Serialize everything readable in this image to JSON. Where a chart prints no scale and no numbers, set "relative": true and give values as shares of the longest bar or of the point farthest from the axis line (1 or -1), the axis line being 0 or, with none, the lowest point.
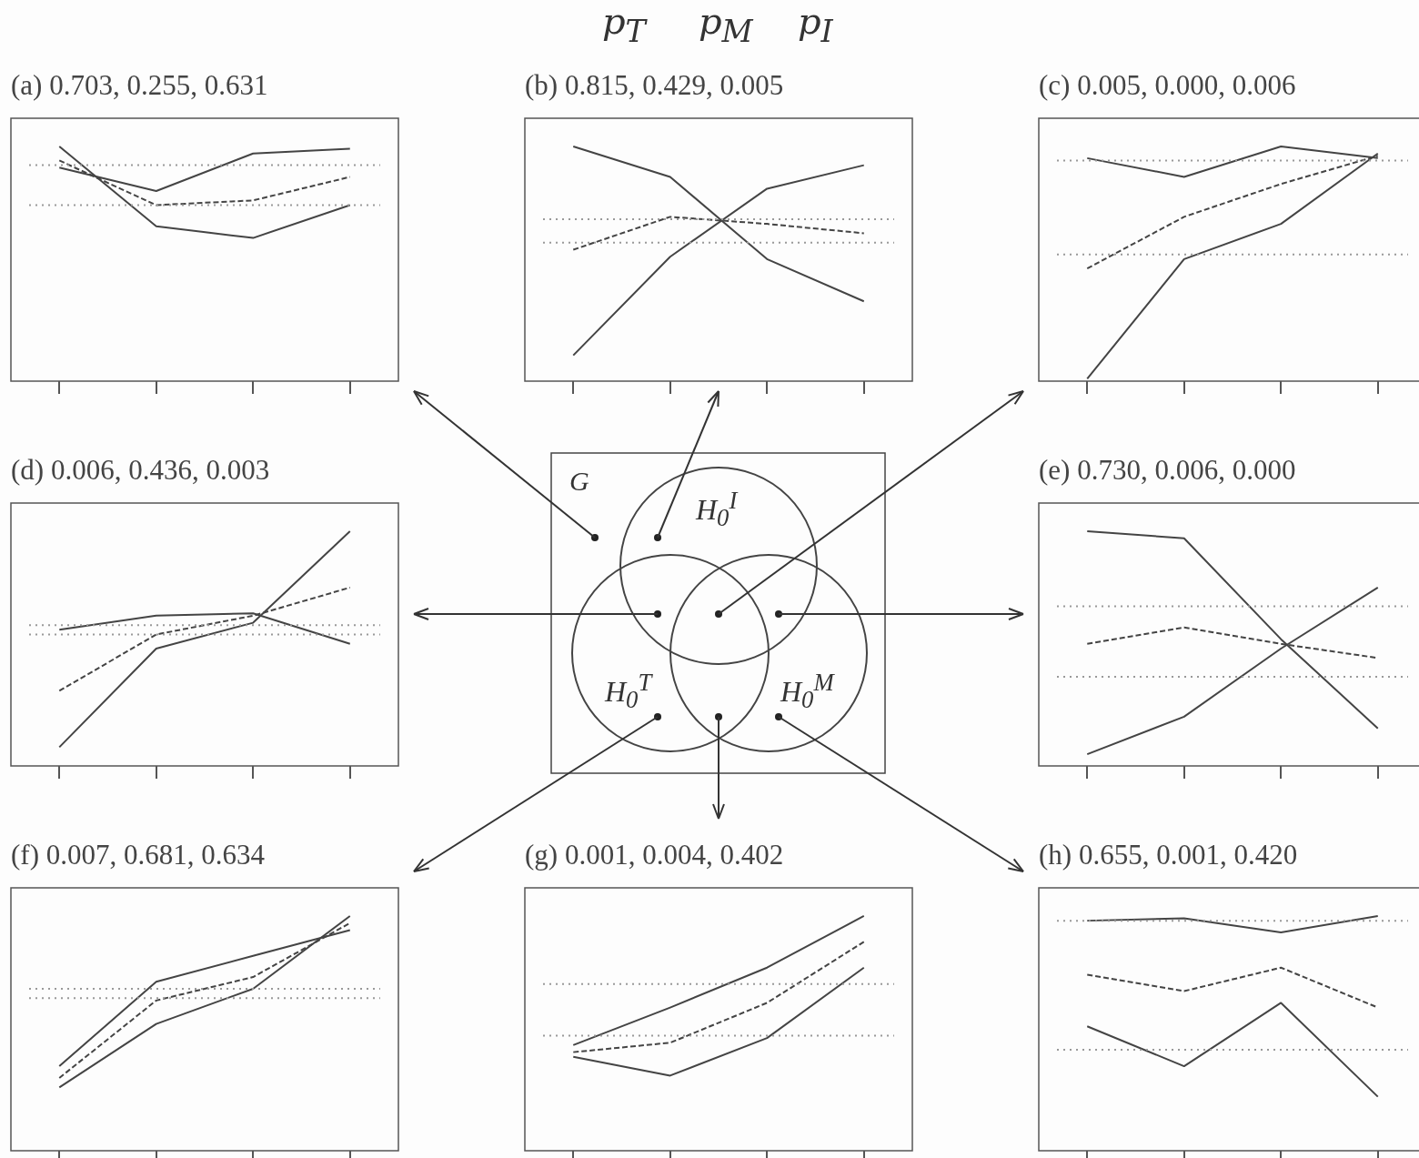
{
  "chart_data": [
    {
      "type": "line",
      "title": "(a) 0.703, 0.255, 0.631",
      "relative": true,
      "marker": "none",
      "categories": [
        null,
        null,
        null,
        null
      ],
      "series": [
        {
          "color": "#444444",
          "values": [
            1,
            0.66,
            0.61,
            0.75
          ]
        },
        {
          "color": "#444444",
          "values": [
            0.91,
            0.81,
            0.97,
            0.99
          ]
        },
        {
          "color": "#444444",
          "line_style": "dashed",
          "values": [
            0.94,
            0.75,
            0.77,
            0.87
          ]
        }
      ],
      "ref_lines": [
        {
          "axis": "y",
          "value": 0.92,
          "color": "#999999",
          "line_style": "dotted"
        },
        {
          "axis": "y",
          "value": 0.75,
          "color": "#999999",
          "line_style": "dotted"
        }
      ]
    },
    {
      "type": "line",
      "title": "(b) 0.815, 0.429, 0.005",
      "relative": true,
      "marker": "none",
      "categories": [
        null,
        null,
        null,
        null
      ],
      "series": [
        {
          "color": "#444444",
          "values": [
            1,
            0.87,
            0.52,
            0.34
          ]
        },
        {
          "color": "#444444",
          "values": [
            0.11,
            0.53,
            0.82,
            0.92
          ]
        },
        {
          "color": "#444444",
          "line_style": "dashed",
          "values": [
            0.56,
            0.7,
            0.67,
            0.63
          ]
        }
      ],
      "ref_lines": [
        {
          "axis": "y",
          "value": 0.69,
          "color": "#999999",
          "line_style": "dotted"
        },
        {
          "axis": "y",
          "value": 0.59,
          "color": "#999999",
          "line_style": "dotted"
        }
      ]
    },
    {
      "type": "line",
      "title": "(c) 0.005, 0.000, 0.006",
      "relative": true,
      "marker": "none",
      "categories": [
        null,
        null,
        null,
        null
      ],
      "series": [
        {
          "color": "#444444",
          "values": [
            0.95,
            0.87,
            1,
            0.95
          ]
        },
        {
          "color": "#444444",
          "values": [
            0.01,
            0.52,
            0.67,
            0.97
          ]
        },
        {
          "color": "#444444",
          "line_style": "dashed",
          "values": [
            0.48,
            0.7,
            0.84,
            0.96
          ]
        }
      ],
      "ref_lines": [
        {
          "axis": "y",
          "value": 0.94,
          "color": "#999999",
          "line_style": "dotted"
        },
        {
          "axis": "y",
          "value": 0.54,
          "color": "#999999",
          "line_style": "dotted"
        }
      ]
    },
    {
      "type": "line",
      "title": "(d) 0.006, 0.436, 0.003",
      "relative": true,
      "marker": "none",
      "categories": [
        null,
        null,
        null,
        null
      ],
      "series": [
        {
          "color": "#444444",
          "values": [
            0.58,
            0.64,
            0.65,
            0.52
          ]
        },
        {
          "color": "#444444",
          "values": [
            0.08,
            0.5,
            0.61,
            1
          ]
        },
        {
          "color": "#444444",
          "line_style": "dashed",
          "values": [
            0.32,
            0.56,
            0.64,
            0.76
          ]
        }
      ],
      "ref_lines": [
        {
          "axis": "y",
          "value": 0.6,
          "color": "#999999",
          "line_style": "dotted"
        },
        {
          "axis": "y",
          "value": 0.56,
          "color": "#999999",
          "line_style": "dotted"
        }
      ]
    },
    {
      "type": "other",
      "annotations": [
        "p$_{T}$",
        "p$_{M}$",
        "p$_{I}$",
        "G",
        "H$_{0}$$^{I}$",
        "H$_{0}$$^{T}$",
        "H$_{0}$$^{M}$"
      ]
    },
    {
      "type": "line",
      "title": "(e) 0.730, 0.006, 0.000",
      "relative": true,
      "marker": "none",
      "categories": [
        null,
        null,
        null,
        null
      ],
      "series": [
        {
          "color": "#444444",
          "values": [
            1,
            0.97,
            0.54,
            0.16
          ]
        },
        {
          "color": "#444444",
          "values": [
            0.05,
            0.21,
            0.5,
            0.76
          ]
        },
        {
          "color": "#444444",
          "line_style": "dashed",
          "values": [
            0.52,
            0.59,
            0.52,
            0.46
          ]
        }
      ],
      "ref_lines": [
        {
          "axis": "y",
          "value": 0.68,
          "color": "#999999",
          "line_style": "dotted"
        },
        {
          "axis": "y",
          "value": 0.38,
          "color": "#999999",
          "line_style": "dotted"
        }
      ]
    },
    {
      "type": "line",
      "title": "(f) 0.007, 0.681, 0.634",
      "relative": true,
      "marker": "none",
      "categories": [
        null,
        null,
        null,
        null
      ],
      "series": [
        {
          "color": "#444444",
          "values": [
            0.36,
            0.72,
            0.83,
            0.94
          ]
        },
        {
          "color": "#444444",
          "values": [
            0.27,
            0.54,
            0.69,
            1
          ]
        },
        {
          "color": "#444444",
          "line_style": "dashed",
          "values": [
            0.31,
            0.64,
            0.74,
            0.97
          ]
        }
      ],
      "ref_lines": [
        {
          "axis": "y",
          "value": 0.69,
          "color": "#999999",
          "line_style": "dotted"
        },
        {
          "axis": "y",
          "value": 0.65,
          "color": "#999999",
          "line_style": "dotted"
        }
      ]
    },
    {
      "type": "line",
      "title": "(g) 0.001, 0.004, 0.402",
      "relative": true,
      "marker": "none",
      "categories": [
        null,
        null,
        null,
        null
      ],
      "series": [
        {
          "color": "#444444",
          "values": [
            0.45,
            0.61,
            0.78,
            1
          ]
        },
        {
          "color": "#444444",
          "values": [
            0.4,
            0.32,
            0.48,
            0.78
          ]
        },
        {
          "color": "#444444",
          "line_style": "dashed",
          "values": [
            0.42,
            0.46,
            0.63,
            0.89
          ]
        }
      ],
      "ref_lines": [
        {
          "axis": "y",
          "value": 0.71,
          "color": "#999999",
          "line_style": "dotted"
        },
        {
          "axis": "y",
          "value": 0.49,
          "color": "#999999",
          "line_style": "dotted"
        }
      ]
    },
    {
      "type": "line",
      "title": "(h) 0.655, 0.001, 0.420",
      "relative": true,
      "marker": "none",
      "categories": [
        null,
        null,
        null,
        null
      ],
      "series": [
        {
          "color": "#444444",
          "values": [
            0.98,
            0.99,
            0.93,
            1
          ]
        },
        {
          "color": "#444444",
          "values": [
            0.53,
            0.36,
            0.63,
            0.23
          ]
        },
        {
          "color": "#444444",
          "line_style": "dashed",
          "values": [
            0.75,
            0.68,
            0.78,
            0.61
          ]
        }
      ],
      "ref_lines": [
        {
          "axis": "y",
          "value": 0.98,
          "color": "#999999",
          "line_style": "dotted"
        },
        {
          "axis": "y",
          "value": 0.43,
          "color": "#999999",
          "line_style": "dotted"
        }
      ]
    }
  ]
}
